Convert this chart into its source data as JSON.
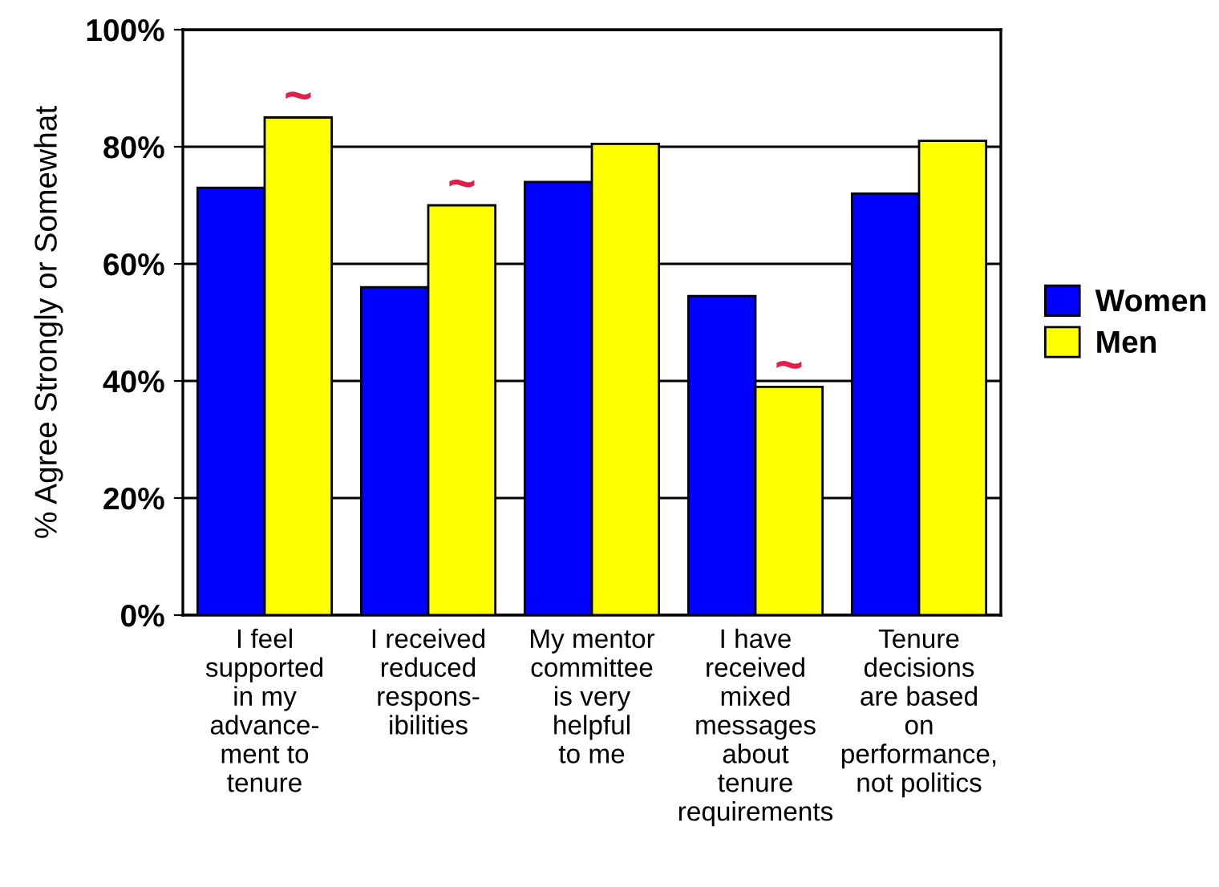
{
  "chart_data": {
    "type": "bar",
    "ylabel": "% Agree Strongly or Somewhat",
    "categories": [
      "I feel\nsupported\nin my\nadvance-\nment to\ntenure",
      "I received\nreduced\nrespons-\nibilities",
      "My mentor\ncommittee\nis very\nhelpful\nto me",
      "I have\nreceived\nmixed\nmessages\nabout\ntenure\nrequirements",
      "Tenure\ndecisions\nare based\non\nperformance,\nnot politics"
    ],
    "series": [
      {
        "name": "Women",
        "color": "#0000ff",
        "values": [
          73,
          56,
          74,
          54.5,
          72
        ]
      },
      {
        "name": "Men",
        "color": "#ffff00",
        "values": [
          85,
          70,
          80.5,
          39,
          81
        ]
      }
    ],
    "ylim": [
      0,
      100
    ],
    "yticks": [
      {
        "value": 0,
        "label": "0%"
      },
      {
        "value": 20,
        "label": "20%"
      },
      {
        "value": 40,
        "label": "40%"
      },
      {
        "value": 60,
        "label": "60%"
      },
      {
        "value": 80,
        "label": "80%"
      },
      {
        "value": 100,
        "label": "100%"
      }
    ],
    "annotations": [
      {
        "text": "~",
        "x": "I feel\nsupported\nin my\nadvance-\nment to\ntenure",
        "y": 85
      },
      {
        "text": "~",
        "x": "I received\nreduced\nrespons-\nibilities",
        "y": 70
      },
      {
        "text": "~",
        "x": "I have\nreceived\nmixed\nmessages\nabout\ntenure\nrequirements",
        "y": 39
      }
    ],
    "grid": "y",
    "legend": "right"
  }
}
